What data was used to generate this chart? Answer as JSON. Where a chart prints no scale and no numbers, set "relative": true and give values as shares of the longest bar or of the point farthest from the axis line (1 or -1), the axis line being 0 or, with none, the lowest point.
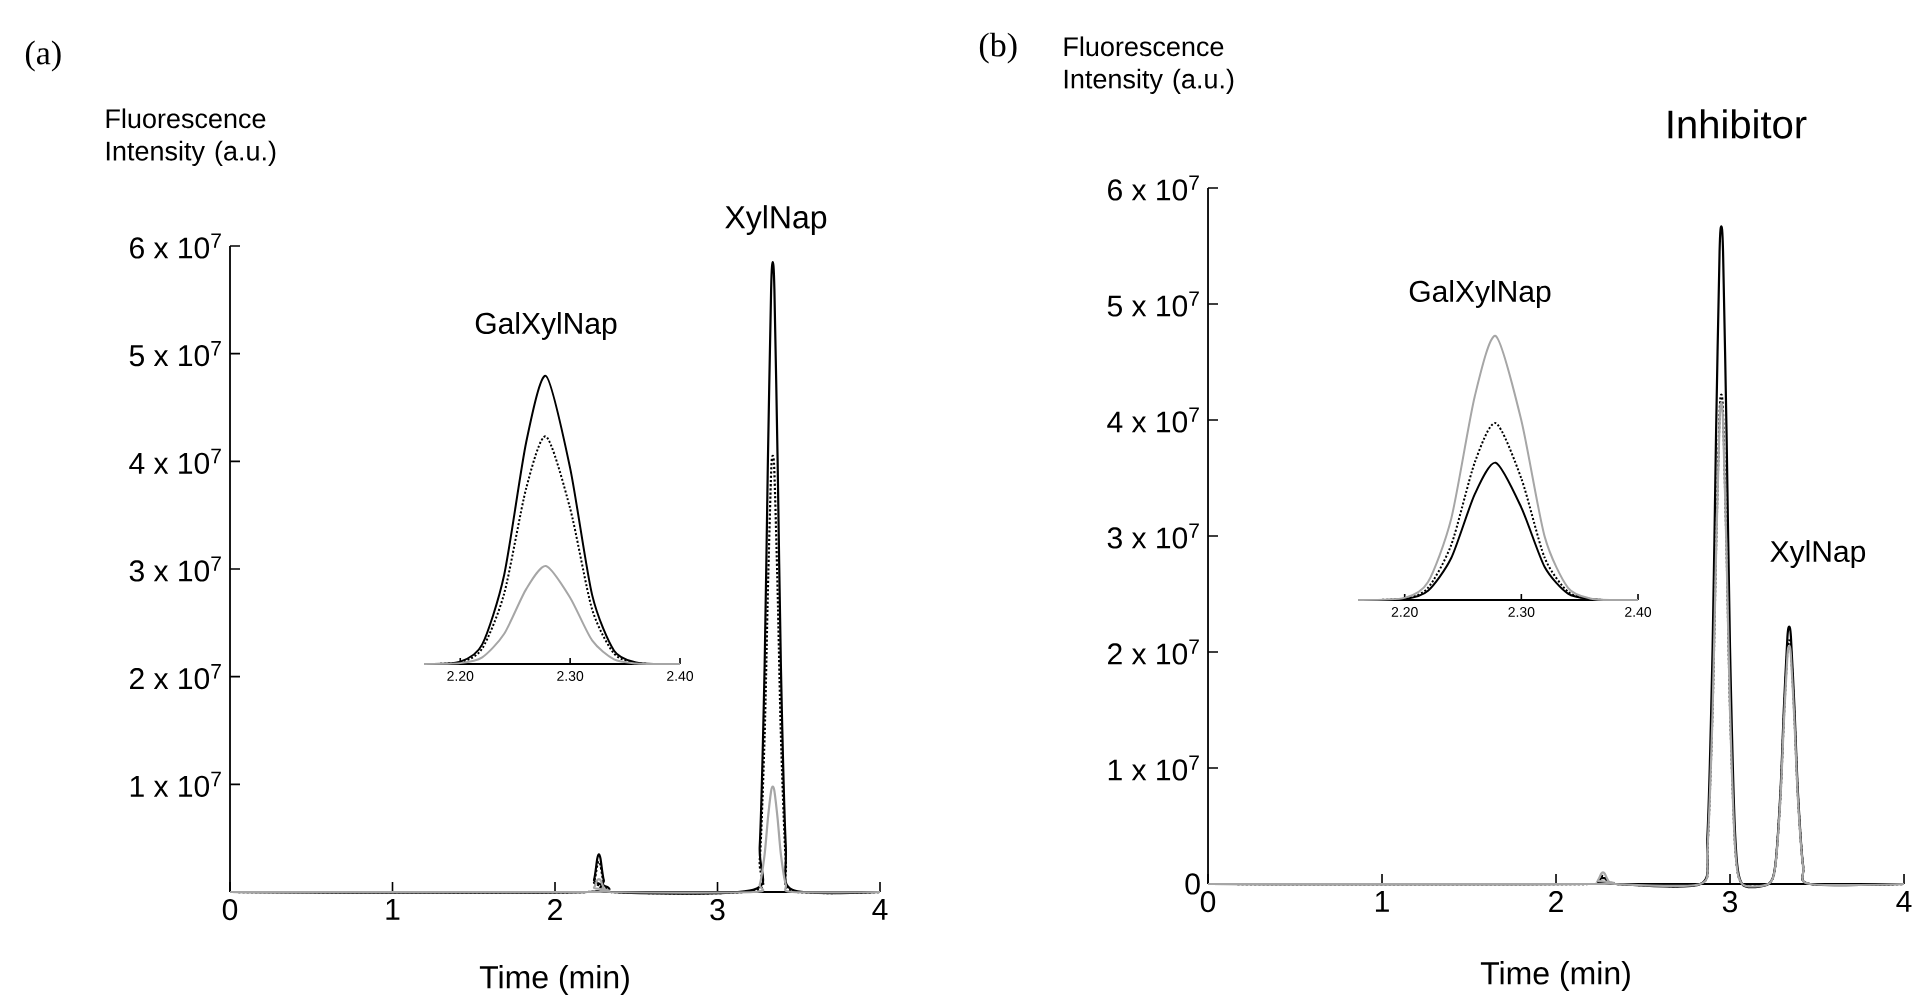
{
  "chart_data": [
    {
      "type": "line",
      "title": "(a)",
      "xlabel": "Time (min)",
      "ylabel": "Fluorescence Intensity (a.u.)",
      "xlim": [
        0,
        4
      ],
      "ylim": [
        0,
        60000000
      ],
      "xticks": [
        0,
        1,
        2,
        3,
        4
      ],
      "yticks": [
        {
          "value": 10000000,
          "label": "1 x 10$^{7}$"
        },
        {
          "value": 20000000,
          "label": "2 x 10$^{7}$"
        },
        {
          "value": 30000000,
          "label": "3 x 10$^{7}$"
        },
        {
          "value": 40000000,
          "label": "4 x 10$^{7}$"
        },
        {
          "value": 50000000,
          "label": "5 x 10$^{7}$"
        },
        {
          "value": 60000000,
          "label": "6 x 10$^{7}$"
        }
      ],
      "annotations": [
        "XylNap"
      ],
      "series": [
        {
          "color": "#000000",
          "line_style": "solid",
          "x": [
            0,
            2.2,
            2.24,
            2.26,
            2.27,
            2.28,
            2.3,
            2.34,
            3.22,
            3.26,
            3.29,
            3.31,
            3.33,
            3.34,
            3.35,
            3.37,
            3.39,
            3.42,
            3.46,
            4
          ],
          "values": [
            0,
            0,
            1100000,
            3100000,
            3500000,
            3100000,
            1100000,
            0,
            200000,
            4300000,
            21000000,
            40000000,
            56000000,
            58500000,
            56000000,
            40000000,
            21000000,
            4300000,
            200000,
            0
          ]
        },
        {
          "color": "#000000",
          "line_style": "dotted",
          "x": [
            0,
            2.2,
            2.24,
            2.26,
            2.27,
            2.28,
            2.3,
            2.34,
            3.22,
            3.26,
            3.29,
            3.31,
            3.33,
            3.34,
            3.35,
            3.37,
            3.39,
            3.42,
            3.46,
            4
          ],
          "values": [
            0,
            0,
            900000,
            2500000,
            2800000,
            2500000,
            900000,
            0,
            100000,
            3000000,
            14600000,
            28000000,
            39000000,
            40500000,
            39000000,
            28000000,
            14600000,
            3000000,
            100000,
            0
          ]
        },
        {
          "color": "#a6a6a6",
          "line_style": "solid",
          "x": [
            0,
            2.2,
            2.24,
            2.26,
            2.27,
            2.28,
            2.3,
            2.34,
            3.22,
            3.26,
            3.29,
            3.31,
            3.33,
            3.34,
            3.35,
            3.37,
            3.39,
            3.42,
            3.46,
            4
          ],
          "values": [
            0,
            0,
            400000,
            1100000,
            1200000,
            1100000,
            400000,
            0,
            0,
            700000,
            3500000,
            6800000,
            9400000,
            9800000,
            9400000,
            6800000,
            3500000,
            700000,
            0,
            0
          ]
        }
      ]
    },
    {
      "type": "line",
      "title": "GalXylNap",
      "relative": true,
      "tick_labels": "x",
      "xlim": [
        2.167,
        2.4
      ],
      "xticks": [
        {
          "value": 2.2,
          "label": "2.20"
        },
        {
          "value": 2.3,
          "label": "2.30"
        },
        {
          "value": 2.4,
          "label": "2.40"
        }
      ],
      "series": [
        {
          "color": "#000000",
          "line_style": "solid",
          "x": [
            2.167,
            2.2,
            2.22,
            2.24,
            2.26,
            2.278,
            2.3,
            2.32,
            2.34,
            2.36,
            2.38,
            2.4
          ],
          "values": [
            0,
            0.008,
            0.068,
            0.31,
            0.77,
            1,
            0.68,
            0.24,
            0.046,
            0.005,
            0,
            0
          ]
        },
        {
          "color": "#000000",
          "line_style": "dotted",
          "x": [
            2.167,
            2.2,
            2.22,
            2.24,
            2.26,
            2.278,
            2.3,
            2.32,
            2.34,
            2.36,
            2.38,
            2.4
          ],
          "values": [
            0,
            0.006,
            0.054,
            0.245,
            0.61,
            0.79,
            0.54,
            0.19,
            0.036,
            0.004,
            0,
            0
          ]
        },
        {
          "color": "#a6a6a6",
          "line_style": "solid",
          "x": [
            2.167,
            2.2,
            2.22,
            2.24,
            2.26,
            2.278,
            2.3,
            2.32,
            2.34,
            2.36,
            2.38,
            2.4
          ],
          "values": [
            0,
            0.003,
            0.023,
            0.105,
            0.26,
            0.34,
            0.23,
            0.082,
            0.016,
            0.002,
            0,
            0
          ]
        }
      ]
    },
    {
      "type": "line",
      "title": "(b)",
      "xlabel": "Time (min)",
      "ylabel": "Fluorescence Intensity (a.u.)",
      "xlim": [
        0,
        4
      ],
      "ylim": [
        0,
        60000000
      ],
      "xticks": [
        0,
        1,
        2,
        3,
        4
      ],
      "yticks": [
        0,
        {
          "value": 10000000,
          "label": "1 x 10$^{7}$"
        },
        {
          "value": 20000000,
          "label": "2 x 10$^{7}$"
        },
        {
          "value": 30000000,
          "label": "3 x 10$^{7}$"
        },
        {
          "value": 40000000,
          "label": "4 x 10$^{7}$"
        },
        {
          "value": 50000000,
          "label": "5 x 10$^{7}$"
        },
        {
          "value": 60000000,
          "label": "6 x 10$^{7}$"
        }
      ],
      "annotations": [
        "Inhibitor",
        "XylNap"
      ],
      "series": [
        {
          "color": "#000000",
          "line_style": "solid",
          "x": [
            0,
            2.2,
            2.24,
            2.26,
            2.27,
            2.28,
            2.3,
            2.34,
            2.83,
            2.87,
            2.9,
            2.92,
            2.94,
            2.95,
            2.96,
            2.98,
            3.0,
            3.03,
            3.07,
            3.22,
            3.26,
            3.29,
            3.31,
            3.33,
            3.34,
            3.35,
            3.37,
            3.39,
            3.42,
            3.46,
            4
          ],
          "values": [
            0,
            0,
            200000,
            500000,
            500000,
            500000,
            200000,
            0,
            0,
            4100000,
            20400000,
            39000000,
            54500000,
            56700000,
            54500000,
            39000000,
            20400000,
            4100000,
            0,
            0,
            1600000,
            8000000,
            15300000,
            21300000,
            22200000,
            21300000,
            15300000,
            8000000,
            1600000,
            0,
            0
          ]
        },
        {
          "color": "#000000",
          "line_style": "dotted",
          "x": [
            0,
            2.2,
            2.24,
            2.26,
            2.27,
            2.28,
            2.3,
            2.34,
            2.83,
            2.87,
            2.9,
            2.92,
            2.94,
            2.95,
            2.96,
            2.98,
            3.0,
            3.03,
            3.07,
            3.22,
            3.26,
            3.29,
            3.31,
            3.33,
            3.34,
            3.35,
            3.37,
            3.39,
            3.42,
            3.46,
            4
          ],
          "values": [
            0,
            0,
            200000,
            600000,
            700000,
            600000,
            200000,
            0,
            0,
            3100000,
            15200000,
            29000000,
            40500000,
            42200000,
            40500000,
            29000000,
            15200000,
            3100000,
            0,
            0,
            1500000,
            7600000,
            14500000,
            20200000,
            21000000,
            20200000,
            14500000,
            7600000,
            1500000,
            0,
            0
          ]
        },
        {
          "color": "#a6a6a6",
          "line_style": "solid",
          "x": [
            0,
            2.2,
            2.24,
            2.26,
            2.27,
            2.28,
            2.3,
            2.34,
            2.83,
            2.87,
            2.9,
            2.92,
            2.94,
            2.95,
            2.96,
            2.98,
            3.0,
            3.03,
            3.07,
            3.22,
            3.26,
            3.29,
            3.31,
            3.33,
            3.34,
            3.35,
            3.37,
            3.39,
            3.42,
            3.46,
            4
          ],
          "values": [
            0,
            0,
            300000,
            900000,
            1000000,
            900000,
            300000,
            0,
            0,
            3000000,
            14900000,
            28600000,
            39800000,
            41500000,
            39800000,
            28600000,
            14900000,
            3000000,
            0,
            0,
            1500000,
            7400000,
            14100000,
            19700000,
            20500000,
            19700000,
            14100000,
            7400000,
            1500000,
            0,
            0
          ]
        }
      ]
    },
    {
      "type": "line",
      "title": "GalXylNap",
      "relative": true,
      "tick_labels": "x",
      "xlim": [
        2.16,
        2.4
      ],
      "xticks": [
        {
          "value": 2.2,
          "label": "2.20"
        },
        {
          "value": 2.3,
          "label": "2.30"
        },
        {
          "value": 2.4,
          "label": "2.40"
        }
      ],
      "series": [
        {
          "color": "#000000",
          "line_style": "solid",
          "x": [
            2.16,
            2.2,
            2.22,
            2.24,
            2.26,
            2.278,
            2.3,
            2.32,
            2.34,
            2.36,
            2.38,
            2.4
          ],
          "values": [
            0,
            0.004,
            0.035,
            0.16,
            0.4,
            0.52,
            0.35,
            0.125,
            0.024,
            0.003,
            0,
            0
          ]
        },
        {
          "color": "#000000",
          "line_style": "dotted",
          "x": [
            2.16,
            2.2,
            2.22,
            2.24,
            2.26,
            2.278,
            2.3,
            2.32,
            2.34,
            2.36,
            2.38,
            2.4
          ],
          "values": [
            0,
            0.005,
            0.046,
            0.21,
            0.52,
            0.67,
            0.46,
            0.16,
            0.031,
            0.003,
            0,
            0
          ]
        },
        {
          "color": "#a6a6a6",
          "line_style": "solid",
          "x": [
            2.16,
            2.2,
            2.22,
            2.24,
            2.26,
            2.278,
            2.3,
            2.32,
            2.34,
            2.36,
            2.38,
            2.4
          ],
          "values": [
            0,
            0.008,
            0.068,
            0.31,
            0.77,
            1,
            0.68,
            0.24,
            0.046,
            0.005,
            0,
            0
          ]
        }
      ]
    }
  ]
}
